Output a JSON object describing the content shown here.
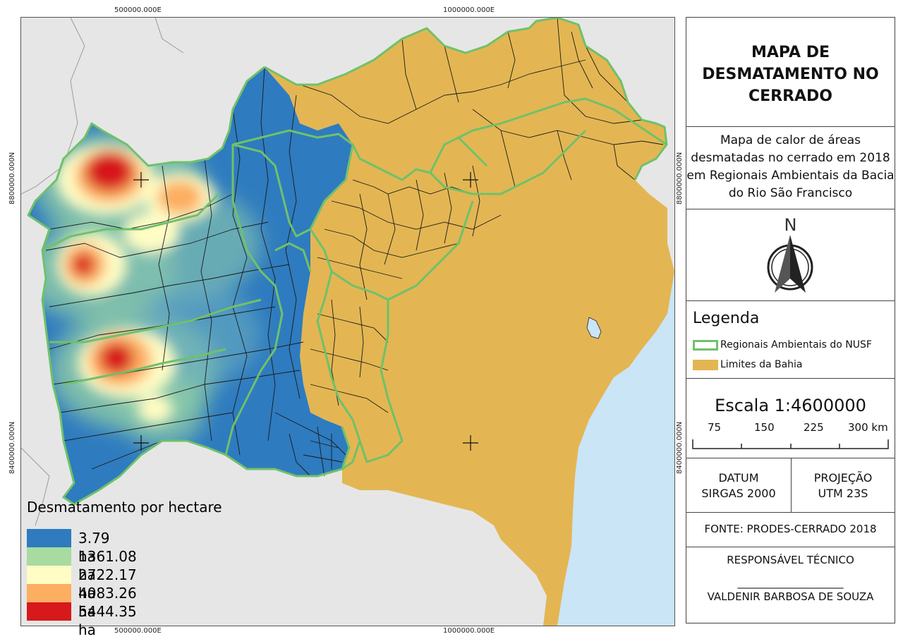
{
  "map": {
    "grid_labels": {
      "x_left": "500000.000E",
      "x_right": "1000000.000E",
      "y_top": "8800000.000N",
      "y_bottom": "8400000.000N"
    },
    "heat_legend": {
      "title": "Desmatamento por hectare",
      "items": [
        {
          "label": "3.79 ha",
          "color": "#2e7bbf"
        },
        {
          "label": "1361.08 ha",
          "color": "#a7dba0"
        },
        {
          "label": "2722.17 ha",
          "color": "#fffcc4"
        },
        {
          "label": "4083.26 ha",
          "color": "#fdae61"
        },
        {
          "label": "5444.35 ha",
          "color": "#d7191c"
        }
      ]
    },
    "colors": {
      "bahia_fill": "#e3b653",
      "region_outline": "#6fc16a",
      "ocean": "#c9e5f6",
      "background": "#e6e6e6"
    }
  },
  "panel": {
    "title": "MAPA DE DESMATAMENTO NO CERRADO",
    "subtitle": "Mapa de calor de áreas desmatadas no cerrado em 2018 em Regionais Ambientais da Bacia do Rio São Francisco",
    "north_letter": "N",
    "legend": {
      "title": "Legenda",
      "items": [
        {
          "label": "Regionais Ambientais do NUSF",
          "type": "outline",
          "color": "#6fc16a"
        },
        {
          "label": "Limites da Bahia",
          "type": "fill",
          "color": "#e3b653"
        }
      ]
    },
    "scale": {
      "label": "Escala 1:4600000",
      "ticks": [
        "75",
        "150",
        "225",
        "300 km"
      ]
    },
    "datum": {
      "line1": "DATUM",
      "line2": "SIRGAS 2000"
    },
    "projection": {
      "line1": "PROJEÇÃO",
      "line2": "UTM 23S"
    },
    "source": "FONTE: PRODES-CERRADO 2018",
    "responsible": {
      "title": "RESPONSÁVEL TÉCNICO",
      "line": "____________________",
      "name": "VALDENIR BARBOSA DE SOUZA"
    }
  }
}
